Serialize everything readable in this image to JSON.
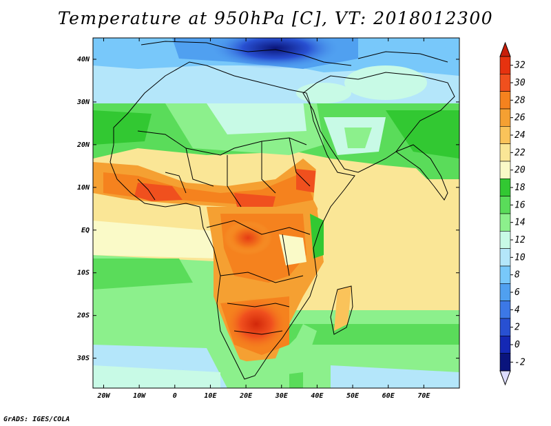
{
  "title": "Temperature at 950hPa [C], VT: 2018012300",
  "footer": "GrADS: IGES/COLA",
  "map": {
    "lon_range": [
      -23,
      80
    ],
    "lat_range": [
      -37,
      45
    ],
    "lon_ticks": [
      {
        "value": -20,
        "label": "20W"
      },
      {
        "value": -10,
        "label": "10W"
      },
      {
        "value": 0,
        "label": "0"
      },
      {
        "value": 10,
        "label": "10E"
      },
      {
        "value": 20,
        "label": "20E"
      },
      {
        "value": 30,
        "label": "30E"
      },
      {
        "value": 40,
        "label": "40E"
      },
      {
        "value": 50,
        "label": "50E"
      },
      {
        "value": 60,
        "label": "60E"
      },
      {
        "value": 70,
        "label": "70E"
      }
    ],
    "lat_ticks": [
      {
        "value": 40,
        "label": "40N"
      },
      {
        "value": 30,
        "label": "30N"
      },
      {
        "value": 20,
        "label": "20N"
      },
      {
        "value": 10,
        "label": "10N"
      },
      {
        "value": 0,
        "label": "EQ"
      },
      {
        "value": -10,
        "label": "10S"
      },
      {
        "value": -20,
        "label": "20S"
      },
      {
        "value": -30,
        "label": "30S"
      }
    ]
  },
  "colorbar": {
    "labels": [
      "32",
      "30",
      "28",
      "26",
      "24",
      "22",
      "20",
      "18",
      "16",
      "14",
      "12",
      "10",
      "8",
      "6",
      "4",
      "2",
      "0",
      "-2"
    ],
    "colors": [
      "#e6320f",
      "#f0501e",
      "#f5821e",
      "#f5a032",
      "#fac35a",
      "#fae696",
      "#fafac8",
      "#32c832",
      "#5adc5a",
      "#8cf08c",
      "#c8fae6",
      "#b4e6fa",
      "#78c8fa",
      "#50a0f0",
      "#3c78e6",
      "#2850d2",
      "#1428b4",
      "#0a147d"
    ],
    "top_arrow_color": "#c81e0a",
    "bottom_arrow_color": "#dcdcff"
  }
}
